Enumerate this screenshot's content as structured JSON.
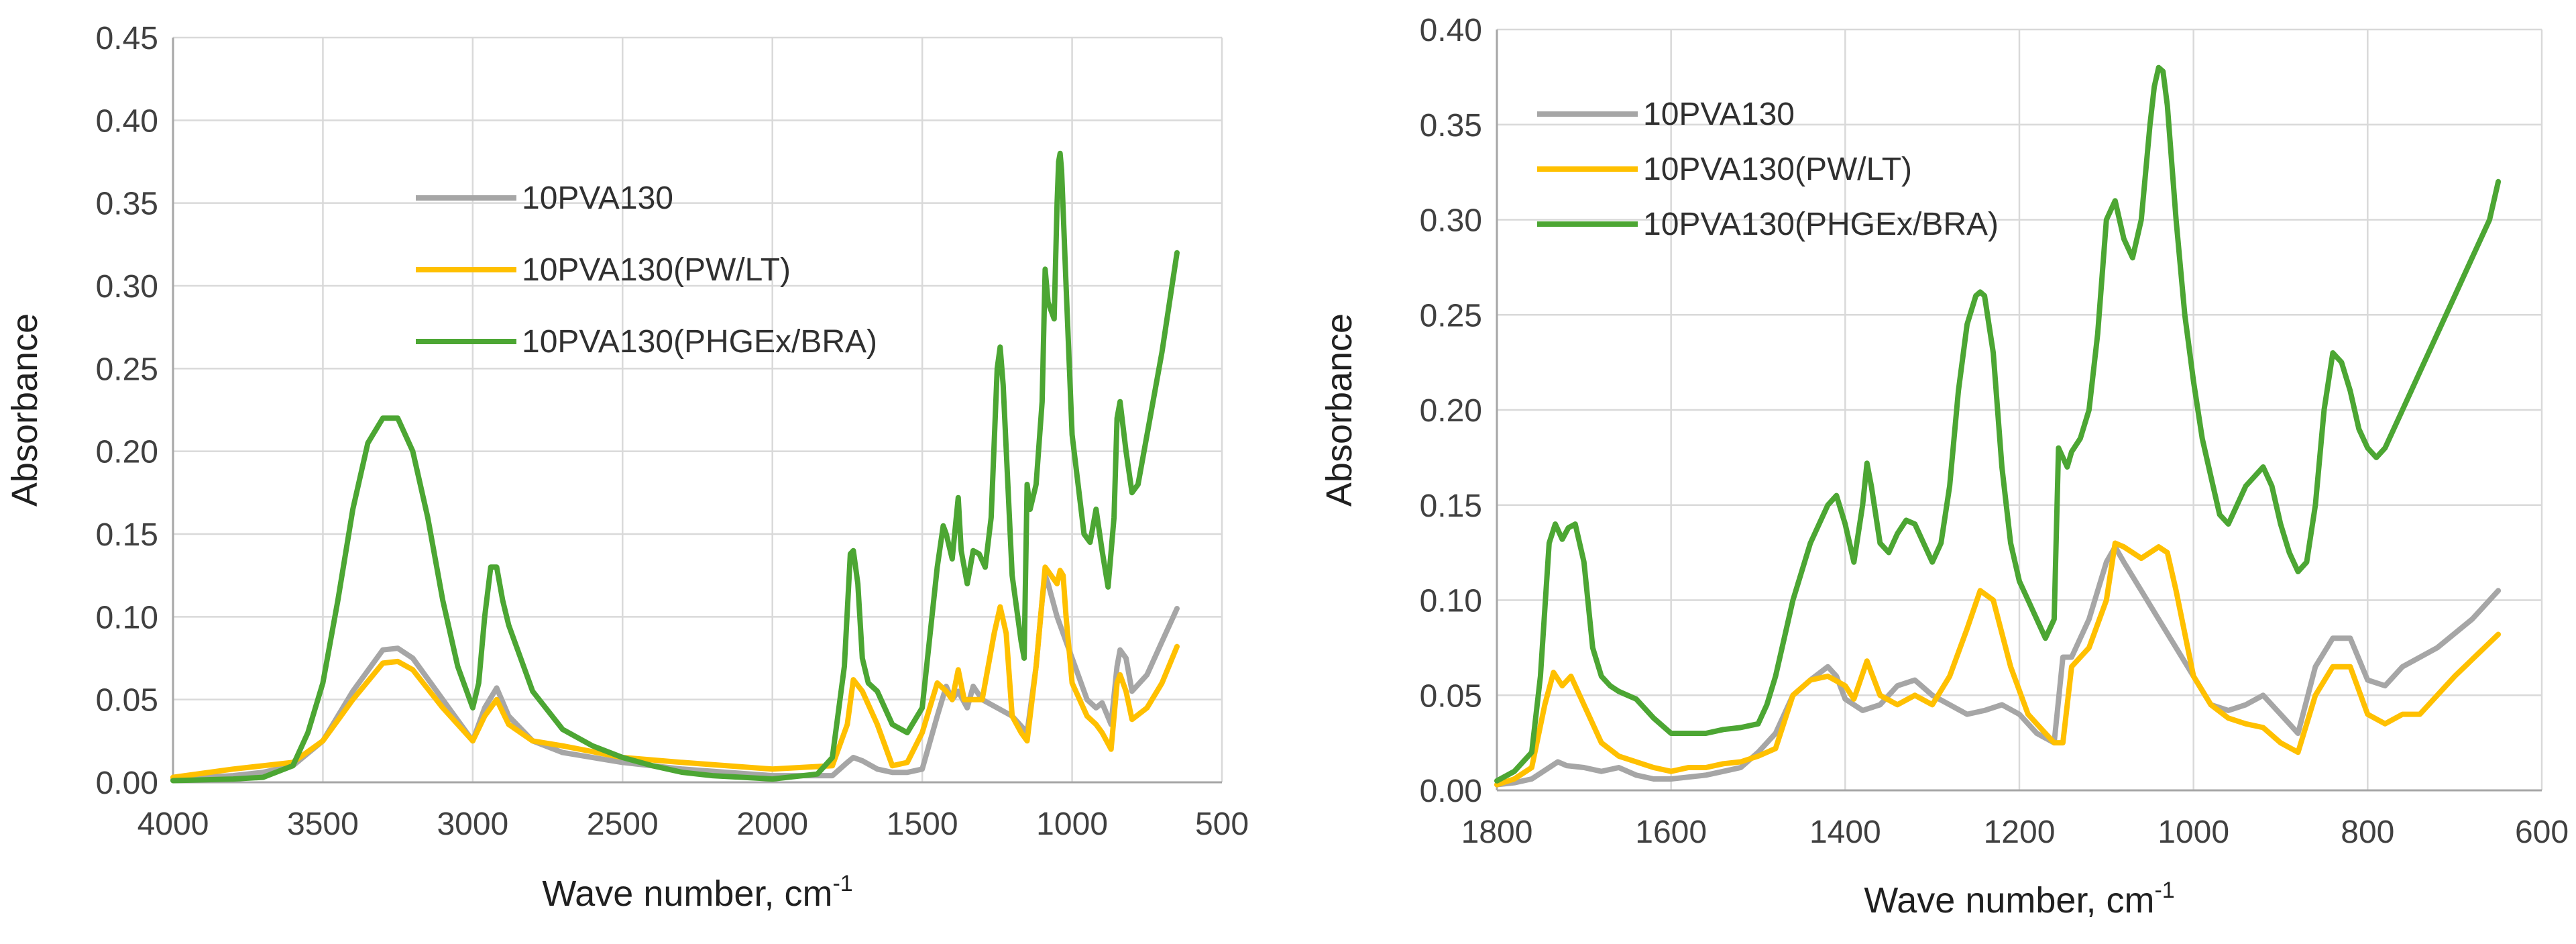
{
  "chart_data": [
    {
      "type": "line",
      "xlabel": "Wave number, cm",
      "xlabel_sup": "-1",
      "ylabel": "Absorbance",
      "xlim": [
        4000,
        500
      ],
      "ylim": [
        0,
        0.45
      ],
      "xticks": [
        4000,
        3500,
        3000,
        2500,
        2000,
        1500,
        1000,
        500
      ],
      "xtick_labels": [
        "4000",
        "3500",
        "3000",
        "2500",
        "2000",
        "1500",
        "1000",
        "500"
      ],
      "yticks": [
        0,
        0.05,
        0.1,
        0.15,
        0.2,
        0.25,
        0.3,
        0.35,
        0.4,
        0.45
      ],
      "ytick_labels": [
        "0.00",
        "0.05",
        "0.10",
        "0.15",
        "0.20",
        "0.25",
        "0.30",
        "0.35",
        "0.40",
        "0.45"
      ],
      "grid": true,
      "legend_position": "upper-center",
      "series": [
        {
          "name": "10PVA130",
          "color": "#a6a6a6",
          "x": [
            4000,
            3800,
            3700,
            3600,
            3500,
            3400,
            3300,
            3250,
            3200,
            3100,
            3000,
            2960,
            2920,
            2880,
            2800,
            2700,
            2500,
            2300,
            2000,
            1800,
            1750,
            1730,
            1700,
            1650,
            1600,
            1550,
            1500,
            1450,
            1420,
            1400,
            1380,
            1350,
            1330,
            1300,
            1250,
            1200,
            1150,
            1120,
            1100,
            1090,
            1080,
            1050,
            1000,
            950,
            920,
            900,
            870,
            850,
            840,
            820,
            800,
            750,
            700,
            650
          ],
          "values": [
            0.002,
            0.004,
            0.006,
            0.01,
            0.025,
            0.055,
            0.08,
            0.081,
            0.075,
            0.05,
            0.025,
            0.045,
            0.057,
            0.04,
            0.025,
            0.018,
            0.012,
            0.008,
            0.004,
            0.004,
            0.012,
            0.015,
            0.013,
            0.008,
            0.006,
            0.006,
            0.008,
            0.04,
            0.058,
            0.05,
            0.055,
            0.045,
            0.058,
            0.05,
            0.045,
            0.04,
            0.03,
            0.07,
            0.11,
            0.125,
            0.12,
            0.1,
            0.075,
            0.05,
            0.045,
            0.048,
            0.035,
            0.07,
            0.08,
            0.075,
            0.055,
            0.065,
            0.085,
            0.105
          ]
        },
        {
          "name": "10PVA130(PW/LT)",
          "color": "#ffc000",
          "x": [
            4000,
            3800,
            3700,
            3600,
            3500,
            3400,
            3300,
            3250,
            3200,
            3100,
            3000,
            2960,
            2920,
            2880,
            2800,
            2700,
            2500,
            2300,
            2000,
            1800,
            1750,
            1730,
            1700,
            1650,
            1600,
            1550,
            1500,
            1450,
            1420,
            1400,
            1380,
            1360,
            1330,
            1300,
            1260,
            1240,
            1220,
            1200,
            1170,
            1150,
            1120,
            1090,
            1070,
            1050,
            1040,
            1030,
            1020,
            1000,
            950,
            920,
            900,
            870,
            850,
            840,
            820,
            800,
            750,
            700,
            650
          ],
          "values": [
            0.003,
            0.008,
            0.01,
            0.012,
            0.025,
            0.05,
            0.072,
            0.073,
            0.068,
            0.045,
            0.025,
            0.04,
            0.05,
            0.035,
            0.025,
            0.022,
            0.015,
            0.012,
            0.008,
            0.01,
            0.035,
            0.062,
            0.055,
            0.035,
            0.01,
            0.012,
            0.03,
            0.06,
            0.055,
            0.05,
            0.068,
            0.05,
            0.05,
            0.05,
            0.09,
            0.106,
            0.09,
            0.04,
            0.03,
            0.025,
            0.07,
            0.13,
            0.125,
            0.12,
            0.128,
            0.125,
            0.1,
            0.06,
            0.04,
            0.035,
            0.03,
            0.02,
            0.06,
            0.065,
            0.055,
            0.038,
            0.045,
            0.06,
            0.082
          ]
        },
        {
          "name": "10PVA130(PHGEx/BRA)",
          "color": "#4ca633",
          "x": [
            4000,
            3800,
            3700,
            3600,
            3550,
            3500,
            3450,
            3400,
            3350,
            3300,
            3250,
            3200,
            3150,
            3100,
            3050,
            3000,
            2980,
            2960,
            2940,
            2920,
            2900,
            2880,
            2850,
            2800,
            2700,
            2600,
            2500,
            2400,
            2300,
            2200,
            2000,
            1850,
            1800,
            1760,
            1740,
            1730,
            1715,
            1700,
            1680,
            1650,
            1600,
            1550,
            1500,
            1450,
            1430,
            1420,
            1400,
            1380,
            1370,
            1350,
            1330,
            1310,
            1290,
            1270,
            1250,
            1240,
            1230,
            1200,
            1170,
            1160,
            1150,
            1140,
            1120,
            1100,
            1090,
            1080,
            1060,
            1050,
            1045,
            1040,
            1035,
            1020,
            1000,
            980,
            960,
            940,
            920,
            900,
            880,
            860,
            850,
            840,
            820,
            800,
            780,
            750,
            700,
            650
          ],
          "values": [
            0.001,
            0.002,
            0.003,
            0.01,
            0.03,
            0.06,
            0.11,
            0.165,
            0.205,
            0.22,
            0.22,
            0.2,
            0.16,
            0.11,
            0.07,
            0.045,
            0.06,
            0.1,
            0.13,
            0.13,
            0.11,
            0.095,
            0.08,
            0.055,
            0.032,
            0.022,
            0.015,
            0.01,
            0.006,
            0.004,
            0.002,
            0.005,
            0.015,
            0.07,
            0.138,
            0.14,
            0.12,
            0.075,
            0.06,
            0.055,
            0.035,
            0.03,
            0.045,
            0.13,
            0.155,
            0.15,
            0.135,
            0.172,
            0.14,
            0.12,
            0.14,
            0.138,
            0.13,
            0.16,
            0.25,
            0.263,
            0.24,
            0.125,
            0.085,
            0.075,
            0.18,
            0.165,
            0.18,
            0.23,
            0.31,
            0.29,
            0.28,
            0.35,
            0.375,
            0.38,
            0.37,
            0.3,
            0.21,
            0.18,
            0.15,
            0.145,
            0.165,
            0.14,
            0.118,
            0.16,
            0.22,
            0.23,
            0.2,
            0.175,
            0.18,
            0.21,
            0.26,
            0.32
          ]
        }
      ]
    },
    {
      "type": "line",
      "xlabel": "Wave number, cm",
      "xlabel_sup": "-1",
      "ylabel": "Absorbance",
      "xlim": [
        1800,
        600
      ],
      "ylim": [
        0,
        0.4
      ],
      "xticks": [
        1800,
        1600,
        1400,
        1200,
        1000,
        800,
        600
      ],
      "xtick_labels": [
        "1800",
        "1600",
        "1400",
        "1200",
        "1000",
        "800",
        "600"
      ],
      "yticks": [
        0,
        0.05,
        0.1,
        0.15,
        0.2,
        0.25,
        0.3,
        0.35,
        0.4
      ],
      "ytick_labels": [
        "0.00",
        "0.05",
        "0.10",
        "0.15",
        "0.20",
        "0.25",
        "0.30",
        "0.35",
        "0.40"
      ],
      "grid": true,
      "legend_position": "top-left",
      "series": [
        {
          "name": "10PVA130",
          "color": "#a6a6a6",
          "x": [
            1800,
            1780,
            1760,
            1740,
            1730,
            1720,
            1700,
            1680,
            1660,
            1640,
            1620,
            1600,
            1580,
            1560,
            1540,
            1520,
            1500,
            1480,
            1460,
            1440,
            1420,
            1410,
            1400,
            1380,
            1360,
            1340,
            1320,
            1300,
            1280,
            1260,
            1240,
            1220,
            1200,
            1180,
            1160,
            1150,
            1140,
            1120,
            1100,
            1090,
            1080,
            1060,
            1040,
            1020,
            1000,
            980,
            960,
            940,
            920,
            900,
            880,
            860,
            840,
            820,
            800,
            780,
            760,
            720,
            680,
            650
          ],
          "values": [
            0.003,
            0.004,
            0.006,
            0.012,
            0.015,
            0.013,
            0.012,
            0.01,
            0.012,
            0.008,
            0.006,
            0.006,
            0.007,
            0.008,
            0.01,
            0.012,
            0.02,
            0.03,
            0.05,
            0.058,
            0.065,
            0.06,
            0.048,
            0.042,
            0.045,
            0.055,
            0.058,
            0.05,
            0.045,
            0.04,
            0.042,
            0.045,
            0.04,
            0.03,
            0.025,
            0.07,
            0.07,
            0.09,
            0.12,
            0.128,
            0.12,
            0.105,
            0.09,
            0.075,
            0.06,
            0.045,
            0.042,
            0.045,
            0.05,
            0.04,
            0.03,
            0.065,
            0.08,
            0.08,
            0.058,
            0.055,
            0.065,
            0.075,
            0.09,
            0.105
          ]
        },
        {
          "name": "10PVA130(PW/LT)",
          "color": "#ffc000",
          "x": [
            1800,
            1780,
            1760,
            1745,
            1735,
            1725,
            1715,
            1700,
            1680,
            1660,
            1640,
            1620,
            1600,
            1580,
            1560,
            1540,
            1520,
            1500,
            1480,
            1460,
            1440,
            1420,
            1400,
            1390,
            1375,
            1360,
            1340,
            1320,
            1300,
            1280,
            1260,
            1245,
            1230,
            1210,
            1190,
            1170,
            1160,
            1150,
            1140,
            1120,
            1100,
            1090,
            1080,
            1060,
            1050,
            1040,
            1030,
            1020,
            1000,
            980,
            960,
            940,
            920,
            900,
            880,
            860,
            840,
            820,
            800,
            780,
            760,
            740,
            700,
            650
          ],
          "values": [
            0.003,
            0.006,
            0.012,
            0.045,
            0.062,
            0.055,
            0.06,
            0.045,
            0.025,
            0.018,
            0.015,
            0.012,
            0.01,
            0.012,
            0.012,
            0.014,
            0.015,
            0.018,
            0.022,
            0.05,
            0.058,
            0.06,
            0.055,
            0.048,
            0.068,
            0.05,
            0.045,
            0.05,
            0.045,
            0.06,
            0.085,
            0.105,
            0.1,
            0.065,
            0.04,
            0.03,
            0.025,
            0.025,
            0.065,
            0.075,
            0.1,
            0.13,
            0.128,
            0.122,
            0.125,
            0.128,
            0.125,
            0.105,
            0.06,
            0.045,
            0.038,
            0.035,
            0.033,
            0.025,
            0.02,
            0.05,
            0.065,
            0.065,
            0.04,
            0.035,
            0.04,
            0.04,
            0.06,
            0.082
          ]
        },
        {
          "name": "10PVA130(PHGEx/BRA)",
          "color": "#4ca633",
          "x": [
            1800,
            1780,
            1760,
            1750,
            1740,
            1733,
            1725,
            1718,
            1710,
            1700,
            1690,
            1680,
            1670,
            1660,
            1650,
            1640,
            1620,
            1600,
            1580,
            1560,
            1540,
            1520,
            1500,
            1490,
            1480,
            1460,
            1440,
            1420,
            1410,
            1400,
            1390,
            1380,
            1375,
            1370,
            1360,
            1350,
            1340,
            1330,
            1320,
            1310,
            1300,
            1290,
            1280,
            1270,
            1260,
            1250,
            1245,
            1240,
            1230,
            1220,
            1210,
            1200,
            1190,
            1180,
            1170,
            1160,
            1155,
            1150,
            1145,
            1140,
            1130,
            1120,
            1110,
            1100,
            1090,
            1080,
            1070,
            1060,
            1050,
            1045,
            1040,
            1035,
            1030,
            1020,
            1010,
            1000,
            990,
            980,
            970,
            960,
            950,
            940,
            930,
            920,
            910,
            900,
            890,
            880,
            870,
            860,
            850,
            840,
            830,
            820,
            810,
            800,
            790,
            780,
            760,
            740,
            720,
            700,
            680,
            660,
            650
          ],
          "values": [
            0.005,
            0.01,
            0.02,
            0.06,
            0.13,
            0.14,
            0.132,
            0.138,
            0.14,
            0.12,
            0.075,
            0.06,
            0.055,
            0.052,
            0.05,
            0.048,
            0.038,
            0.03,
            0.03,
            0.03,
            0.032,
            0.033,
            0.035,
            0.045,
            0.06,
            0.1,
            0.13,
            0.15,
            0.155,
            0.14,
            0.12,
            0.15,
            0.172,
            0.16,
            0.13,
            0.125,
            0.135,
            0.142,
            0.14,
            0.13,
            0.12,
            0.13,
            0.16,
            0.21,
            0.245,
            0.26,
            0.262,
            0.26,
            0.23,
            0.17,
            0.13,
            0.11,
            0.1,
            0.09,
            0.08,
            0.09,
            0.18,
            0.175,
            0.17,
            0.178,
            0.185,
            0.2,
            0.24,
            0.3,
            0.31,
            0.29,
            0.28,
            0.3,
            0.35,
            0.37,
            0.38,
            0.378,
            0.36,
            0.3,
            0.25,
            0.215,
            0.185,
            0.165,
            0.145,
            0.14,
            0.15,
            0.16,
            0.165,
            0.17,
            0.16,
            0.14,
            0.125,
            0.115,
            0.12,
            0.15,
            0.2,
            0.23,
            0.225,
            0.21,
            0.19,
            0.18,
            0.175,
            0.18,
            0.2,
            0.22,
            0.24,
            0.26,
            0.28,
            0.3,
            0.32
          ]
        }
      ]
    }
  ]
}
